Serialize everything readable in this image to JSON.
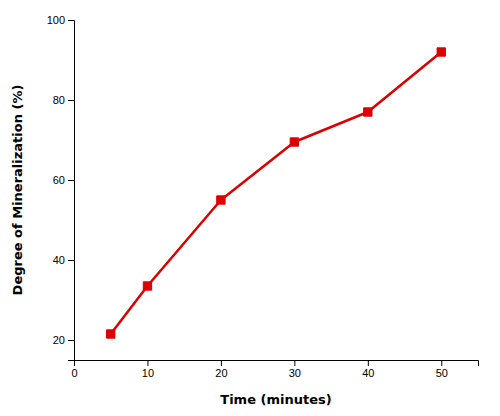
{
  "chart_data": {
    "type": "line",
    "xlabel": "Time (minutes)",
    "ylabel": "Degree of Mineralization (%)",
    "x": [
      5,
      10,
      20,
      30,
      40,
      50
    ],
    "values": [
      21.5,
      33.5,
      55.0,
      69.5,
      77.0,
      92.0
    ],
    "color": "#dd0000",
    "marker": "square",
    "xlim": [
      0,
      55
    ],
    "ylim": [
      15,
      100
    ],
    "xticks": [
      0,
      10,
      20,
      30,
      40,
      50
    ],
    "yticks": [
      20,
      40,
      60,
      80,
      100
    ]
  }
}
